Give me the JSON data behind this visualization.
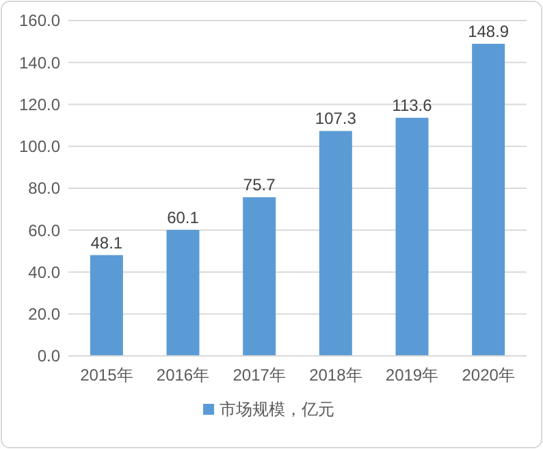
{
  "chart_data": {
    "type": "bar",
    "categories": [
      "2015年",
      "2016年",
      "2017年",
      "2018年",
      "2019年",
      "2020年"
    ],
    "series": [
      {
        "name": "市场规模，亿元",
        "color": "#5b9bd5",
        "values": [
          48.1,
          60.1,
          75.7,
          107.3,
          113.6,
          148.9
        ]
      }
    ],
    "ylim": [
      0,
      160
    ],
    "yticks": [
      {
        "value": 0,
        "label": "0.0"
      },
      {
        "value": 20,
        "label": "20.0"
      },
      {
        "value": 40,
        "label": "40.0"
      },
      {
        "value": 60,
        "label": "60.0"
      },
      {
        "value": 80,
        "label": "80.0"
      },
      {
        "value": 100,
        "label": "100.0"
      },
      {
        "value": 120,
        "label": "120.0"
      },
      {
        "value": 140,
        "label": "140.0"
      },
      {
        "value": 160,
        "label": "160.0"
      }
    ],
    "grid": "y",
    "legend": "bottom",
    "data_labels": true
  }
}
